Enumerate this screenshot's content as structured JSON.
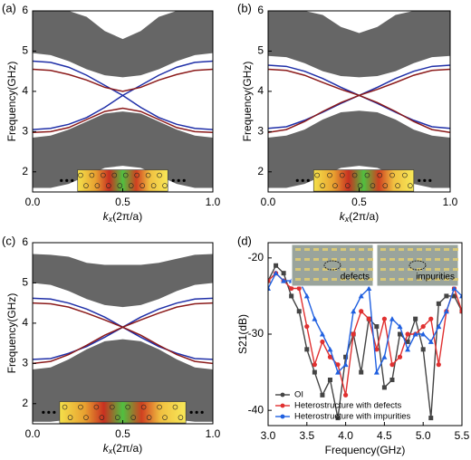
{
  "chart_data": [
    {
      "type": "line",
      "label": "(a)",
      "ylabel": "Frequency(GHz)",
      "xlabel": {
        "var": "k",
        "sub": "x",
        "unit": "(2π/a)"
      },
      "xlim": [
        0,
        1
      ],
      "ylim": [
        1.5,
        6
      ],
      "xticks": [
        {
          "value": 0,
          "label": "0.0"
        },
        0.5,
        {
          "value": 1,
          "label": "1.0"
        }
      ],
      "yticks": [
        2,
        3,
        4,
        5,
        6
      ],
      "x": [
        0,
        0.1,
        0.2,
        0.3,
        0.4,
        0.5,
        0.6,
        0.7,
        0.8,
        0.9,
        1
      ],
      "bands": [
        {
          "color": "#666666",
          "lower": [
            4.95,
            4.9,
            4.75,
            4.55,
            4.4,
            4.35,
            4.4,
            4.55,
            4.75,
            4.9,
            4.95
          ],
          "upper": [
            6,
            6,
            6,
            5.85,
            5.5,
            5.3,
            5.5,
            5.85,
            6,
            6,
            6
          ]
        },
        {
          "color": "#666666",
          "lower": [
            1.6,
            1.6,
            1.7,
            1.9,
            2.1,
            2.15,
            2.1,
            1.9,
            1.7,
            1.6,
            1.6
          ],
          "upper": [
            2.85,
            2.9,
            3.05,
            3.25,
            3.45,
            3.5,
            3.45,
            3.25,
            3.05,
            2.9,
            2.85
          ]
        }
      ],
      "series": [
        {
          "color": "#1f2fa8",
          "values": [
            4.75,
            4.72,
            4.6,
            4.4,
            4.15,
            3.9,
            3.6,
            3.35,
            3.18,
            3.08,
            3.05
          ]
        },
        {
          "color": "#1f2fa8",
          "values": [
            3.05,
            3.08,
            3.18,
            3.35,
            3.6,
            3.9,
            4.15,
            4.4,
            4.6,
            4.72,
            4.75
          ]
        },
        {
          "color": "#8b1a1a",
          "values": [
            4.55,
            4.52,
            4.42,
            4.28,
            4.1,
            4.0,
            4.1,
            4.28,
            4.42,
            4.52,
            4.55
          ]
        },
        {
          "color": "#8b1a1a",
          "values": [
            2.98,
            3.0,
            3.1,
            3.3,
            3.5,
            3.58,
            3.5,
            3.3,
            3.1,
            3.0,
            2.98
          ]
        }
      ]
    },
    {
      "type": "line",
      "label": "(b)",
      "ylabel": "Frequency(GHz)",
      "xlabel": {
        "var": "k",
        "sub": "x",
        "unit": "(2π/a)"
      },
      "xlim": [
        0,
        1
      ],
      "ylim": [
        1.5,
        6
      ],
      "xticks": [
        {
          "value": 0,
          "label": "0.0"
        },
        0.5,
        {
          "value": 1,
          "label": "1.0"
        }
      ],
      "yticks": [
        2,
        3,
        4,
        5,
        6
      ],
      "x": [
        0,
        0.1,
        0.2,
        0.3,
        0.4,
        0.5,
        0.6,
        0.7,
        0.8,
        0.9,
        1
      ],
      "bands": [
        {
          "color": "#666666",
          "lower": [
            4.88,
            4.85,
            4.7,
            4.5,
            4.38,
            4.35,
            4.38,
            4.5,
            4.7,
            4.85,
            4.88
          ],
          "upper": [
            6,
            6,
            6,
            5.9,
            5.6,
            5.45,
            5.6,
            5.9,
            6,
            6,
            6
          ]
        },
        {
          "color": "#666666",
          "lower": [
            1.6,
            1.6,
            1.7,
            1.9,
            2.1,
            2.15,
            2.1,
            1.9,
            1.7,
            1.6,
            1.6
          ],
          "upper": [
            2.85,
            2.9,
            3.05,
            3.3,
            3.48,
            3.52,
            3.48,
            3.3,
            3.05,
            2.9,
            2.85
          ]
        }
      ],
      "series": [
        {
          "color": "#1f2fa8",
          "values": [
            4.65,
            4.62,
            4.5,
            4.32,
            4.1,
            3.9,
            3.7,
            3.48,
            3.28,
            3.12,
            3.08
          ]
        },
        {
          "color": "#1f2fa8",
          "values": [
            3.08,
            3.12,
            3.28,
            3.48,
            3.7,
            3.9,
            4.1,
            4.32,
            4.5,
            4.62,
            4.65
          ]
        },
        {
          "color": "#8b1a1a",
          "values": [
            4.55,
            4.52,
            4.4,
            4.22,
            4.05,
            3.9,
            3.72,
            3.5,
            3.25,
            3.05,
            2.98
          ]
        },
        {
          "color": "#8b1a1a",
          "values": [
            2.98,
            3.05,
            3.25,
            3.5,
            3.72,
            3.9,
            4.05,
            4.22,
            4.4,
            4.52,
            4.55
          ]
        }
      ]
    },
    {
      "type": "line",
      "label": "(c)",
      "ylabel": "Frequency(GHz)",
      "xlabel": {
        "var": "k",
        "sub": "x",
        "unit": "(2π/a)"
      },
      "xlim": [
        0,
        1
      ],
      "ylim": [
        1.5,
        6
      ],
      "xticks": [
        {
          "value": 0,
          "label": "0.0"
        },
        0.5,
        {
          "value": 1,
          "label": "1.0"
        }
      ],
      "yticks": [
        2,
        3,
        4,
        5,
        6
      ],
      "x": [
        0,
        0.1,
        0.2,
        0.3,
        0.4,
        0.5,
        0.6,
        0.7,
        0.8,
        0.9,
        1
      ],
      "bands": [
        {
          "color": "#666666",
          "lower": [
            5.0,
            4.95,
            4.8,
            4.6,
            4.45,
            4.4,
            4.45,
            4.6,
            4.8,
            4.95,
            5.0
          ],
          "upper": [
            5.72,
            5.7,
            5.65,
            5.5,
            5.45,
            5.45,
            5.45,
            5.5,
            5.6,
            5.7,
            5.72
          ]
        },
        {
          "color": "#666666",
          "lower": [
            1.55,
            1.55,
            1.6,
            1.75,
            1.95,
            2.0,
            1.95,
            1.75,
            1.6,
            1.55,
            1.55
          ],
          "upper": [
            2.85,
            2.9,
            3.1,
            3.35,
            3.55,
            3.6,
            3.55,
            3.35,
            3.1,
            2.9,
            2.85
          ]
        }
      ],
      "series": [
        {
          "color": "#1f2fa8",
          "values": [
            4.62,
            4.6,
            4.5,
            4.35,
            4.15,
            3.9,
            3.65,
            3.42,
            3.25,
            3.12,
            3.1
          ]
        },
        {
          "color": "#1f2fa8",
          "values": [
            3.1,
            3.12,
            3.25,
            3.42,
            3.65,
            3.9,
            4.15,
            4.35,
            4.5,
            4.6,
            4.62
          ]
        },
        {
          "color": "#8b1a1a",
          "values": [
            4.5,
            4.48,
            4.4,
            4.25,
            4.08,
            3.9,
            3.7,
            3.45,
            3.22,
            3.05,
            3.0
          ]
        },
        {
          "color": "#8b1a1a",
          "values": [
            3.0,
            3.05,
            3.22,
            3.45,
            3.7,
            3.9,
            4.08,
            4.25,
            4.4,
            4.48,
            4.5
          ]
        }
      ]
    },
    {
      "type": "line",
      "label": "(d)",
      "ylabel": "S21(dB)",
      "xlabel": "Frequency(GHz)",
      "xlim": [
        3.0,
        5.5
      ],
      "ylim": [
        -42,
        -18
      ],
      "xticks": [
        {
          "value": 3,
          "label": "3.0"
        },
        3.5,
        {
          "value": 4,
          "label": "4.0"
        },
        4.5,
        {
          "value": 5,
          "label": "5.0"
        },
        5.5
      ],
      "yticks": [
        -20,
        -30,
        -40
      ],
      "legend": "lower left",
      "inset_labels": [
        "defects",
        "impurities"
      ],
      "x": [
        3.0,
        3.1,
        3.2,
        3.3,
        3.4,
        3.5,
        3.6,
        3.7,
        3.8,
        3.9,
        4.0,
        4.1,
        4.2,
        4.3,
        4.4,
        4.5,
        4.6,
        4.7,
        4.8,
        4.9,
        5.0,
        5.1,
        5.2,
        5.3,
        5.4,
        5.5
      ],
      "series": [
        {
          "name": "OI",
          "color": "#444444",
          "marker": "square",
          "values": [
            -23,
            -21,
            -22,
            -25,
            -27,
            -32,
            -35,
            -38,
            -36,
            -41,
            -33,
            -30,
            -35,
            -28,
            -29,
            -37,
            -36,
            -30,
            -31,
            -28,
            -32,
            -41,
            -26,
            -25,
            -25,
            -27
          ]
        },
        {
          "name": "Heterostructure with defects",
          "color": "#e03030",
          "marker": "circle",
          "values": [
            -23,
            -22,
            -23,
            -24,
            -24,
            -29,
            -34,
            -31,
            -33,
            -34,
            -38,
            -30,
            -27,
            -28,
            -32,
            -28,
            -34,
            -33,
            -30,
            -30,
            -29,
            -28,
            -34,
            -27,
            -24,
            -27
          ]
        },
        {
          "name": "Heterostructure with impurities",
          "color": "#2060e0",
          "marker": "triangle",
          "values": [
            -24,
            -22,
            -23,
            -23,
            -23,
            -25,
            -28,
            -30,
            -32,
            -35,
            -34,
            -27,
            -25,
            -24,
            -35,
            -33,
            -28,
            -29,
            -32,
            -30,
            -30,
            -31,
            -29,
            -27,
            -24,
            -25
          ]
        }
      ]
    }
  ]
}
